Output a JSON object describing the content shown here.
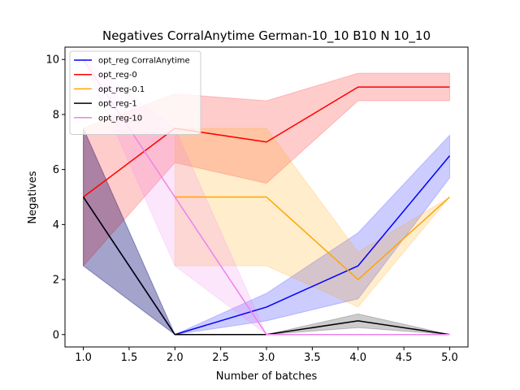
{
  "chart_data": {
    "type": "line",
    "title": "Negatives CorralAnytime German-10_10 B10 N 10_10",
    "xlabel": "Number of batches",
    "ylabel": "Negatives",
    "xlim": [
      0.8,
      5.2
    ],
    "ylim": [
      -0.45,
      10.45
    ],
    "xticks": [
      1.0,
      1.5,
      2.0,
      2.5,
      3.0,
      3.5,
      4.0,
      4.5,
      5.0
    ],
    "xtick_labels": [
      "1.0",
      "1.5",
      "2.0",
      "2.5",
      "3.0",
      "3.5",
      "4.0",
      "4.5",
      "5.0"
    ],
    "yticks": [
      0,
      2,
      4,
      6,
      8,
      10
    ],
    "ytick_labels": [
      "0",
      "2",
      "4",
      "6",
      "8",
      "10"
    ],
    "grid": false,
    "legend_position": "top-left",
    "x": [
      1,
      2,
      3,
      4,
      5
    ],
    "series": [
      {
        "name": "opt_reg CorralAnytime",
        "color": "#0000ff",
        "values": [
          5.0,
          0.0,
          1.0,
          2.5,
          6.5
        ],
        "lower": [
          2.5,
          0.0,
          0.5,
          1.3,
          5.7
        ],
        "upper": [
          7.5,
          0.0,
          1.5,
          3.7,
          7.25
        ]
      },
      {
        "name": "opt_reg-0",
        "color": "#ff0000",
        "values": [
          5.0,
          7.5,
          7.0,
          9.0,
          9.0
        ],
        "lower": [
          2.5,
          6.25,
          5.5,
          8.5,
          8.5
        ],
        "upper": [
          7.5,
          8.75,
          8.5,
          9.5,
          9.5
        ]
      },
      {
        "name": "opt_reg-0.1",
        "color": "#ffa500",
        "values": [
          null,
          5.0,
          5.0,
          2.0,
          5.0
        ],
        "lower": [
          null,
          2.5,
          2.5,
          1.0,
          5.0
        ],
        "upper": [
          null,
          7.5,
          7.5,
          3.0,
          5.0
        ]
      },
      {
        "name": "opt_reg-1",
        "color": "#000000",
        "values": [
          5.0,
          0.0,
          0.0,
          0.5,
          0.0
        ],
        "lower": [
          2.5,
          0.0,
          0.0,
          0.25,
          0.0
        ],
        "upper": [
          7.5,
          0.0,
          0.0,
          0.75,
          0.0
        ]
      },
      {
        "name": "opt_reg-10",
        "color": "#ee82ee",
        "values": [
          10.0,
          5.0,
          0.0,
          0.0,
          0.0
        ],
        "lower": [
          10.0,
          2.5,
          0.0,
          0.0,
          0.0
        ],
        "upper": [
          10.0,
          7.5,
          0.0,
          0.0,
          0.0
        ]
      }
    ]
  }
}
